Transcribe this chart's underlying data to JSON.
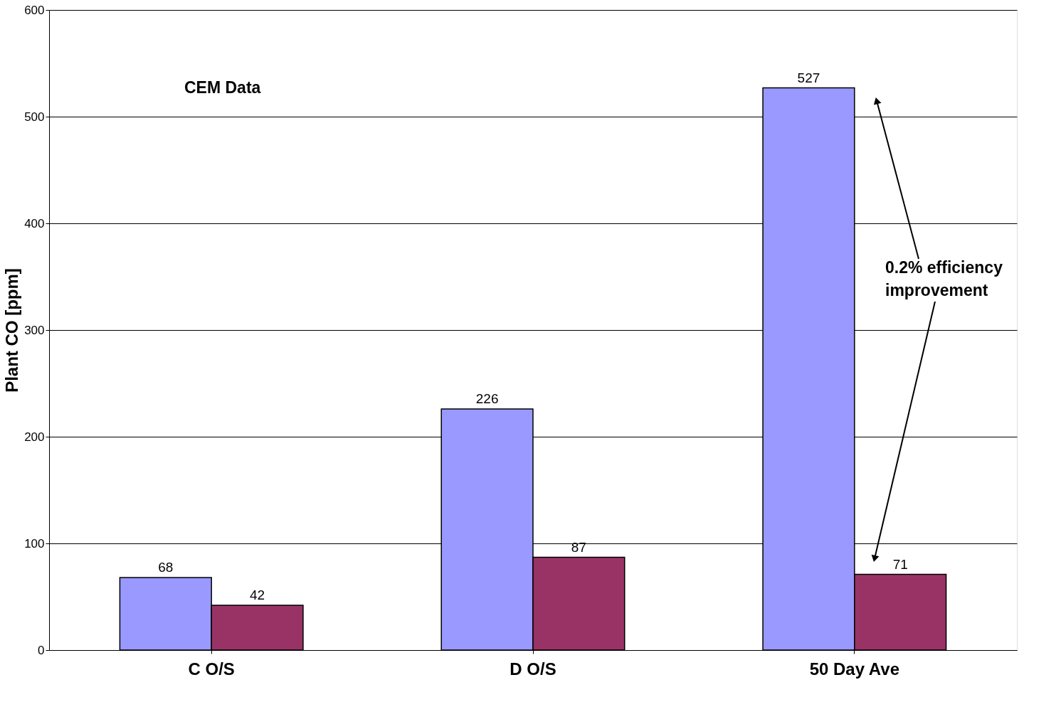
{
  "chart_data": {
    "type": "bar",
    "ylabel": "Plant CO [ppm]",
    "categories": [
      "C   O/S",
      "D   O/S",
      "50 Day Ave"
    ],
    "series": [
      {
        "color": "#9999ff",
        "values": [
          68,
          226,
          527
        ]
      },
      {
        "color": "#993366",
        "values": [
          42,
          87,
          71
        ]
      }
    ],
    "ylim": [
      0,
      600
    ],
    "yticks": [
      0,
      100,
      200,
      300,
      400,
      500,
      600
    ],
    "grid": "y",
    "data_labels": true,
    "legend": false,
    "annotations": [
      "CEM Data",
      "0.2% efficiency improvement"
    ]
  }
}
